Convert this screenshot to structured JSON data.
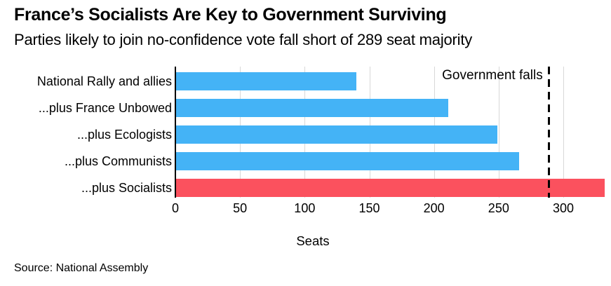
{
  "chart_data": {
    "type": "bar",
    "orientation": "horizontal",
    "title": "France’s Socialists Are Key to Government Surviving",
    "subtitle": "Parties likely to join no-confidence vote fall short of 289 seat majority",
    "categories": [
      "National Rally and allies",
      "...plus France Unbowed",
      "...plus Ecologists",
      "...plus Communists",
      "...plus Socialists"
    ],
    "values": [
      140,
      211,
      249,
      266,
      332
    ],
    "bar_colors": [
      "#44b3f6",
      "#44b3f6",
      "#44b3f6",
      "#44b3f6",
      "#fb515e"
    ],
    "xlabel": "Seats",
    "xticks": [
      0,
      50,
      100,
      150,
      200,
      250,
      300
    ],
    "xlim": [
      0,
      332
    ],
    "grid": "vertical",
    "legend": "none",
    "annotation": {
      "value": 289,
      "label": "Government falls",
      "style": "dashed-black-vertical-line"
    }
  },
  "footer": {
    "source": "Source: National Assembly"
  },
  "colors": {
    "bar_blue": "#44b3f6",
    "bar_red": "#fb515e",
    "gridline": "#d8d8d8",
    "axis_line": "#000000",
    "threshold_line": "#000000",
    "text": "#000000",
    "background": "#ffffff"
  }
}
